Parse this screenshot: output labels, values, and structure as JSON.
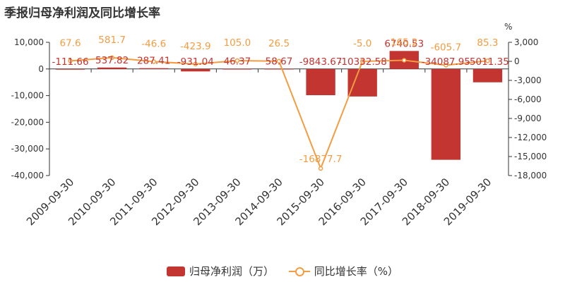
{
  "title": "季报归母净利润及同比增长率",
  "chart_data": {
    "type": "bar",
    "categories": [
      "2009-09-30",
      "2010-09-30",
      "2011-09-30",
      "2012-09-30",
      "2013-09-30",
      "2014-09-30",
      "2015-09-30",
      "2016-09-30",
      "2017-09-30",
      "2018-09-30",
      "2019-09-30"
    ],
    "series": [
      {
        "name": "归母净利润（万）",
        "type": "bar",
        "axis": "left",
        "color": "#c23531",
        "values": [
          -111.66,
          537.82,
          287.41,
          -931.04,
          46.37,
          58.67,
          -9843.67,
          -10332.58,
          6740.53,
          -34087.95,
          -5011.35
        ],
        "labels": [
          "-111.66",
          "537.82",
          "287.41",
          "-931.04",
          "46.37",
          "58.67",
          "-9843.67",
          "-10332.58",
          "6740.53",
          "-34087.95",
          "-5011.35"
        ]
      },
      {
        "name": "同比增长率（%）",
        "type": "line",
        "axis": "right",
        "color": "#f49c41",
        "values": [
          67.6,
          581.7,
          -46.6,
          -423.9,
          105.0,
          26.5,
          -16877.7,
          -5.0,
          165.2,
          -605.7,
          85.3
        ],
        "labels": [
          "67.6",
          "581.7",
          "-46.6",
          "-423.9",
          "105.0",
          "26.5",
          "-16877.7",
          "-5.0",
          "165.2",
          "-605.7",
          "85.3"
        ]
      }
    ],
    "y_left": {
      "min": -40000,
      "max": 10000,
      "ticks": [
        10000,
        0,
        -10000,
        -20000,
        -30000,
        -40000
      ],
      "tick_labels": [
        "10,000",
        "0",
        "-10,000",
        "-20,000",
        "-30,000",
        "-40,000"
      ]
    },
    "y_right": {
      "min": -18000,
      "max": 3000,
      "unit": "%",
      "ticks": [
        3000,
        0,
        -3000,
        -6000,
        -9000,
        -12000,
        -15000,
        -18000
      ],
      "tick_labels": [
        "3,000",
        "0",
        "-3,000",
        "-6,000",
        "-9,000",
        "-12,000",
        "-15,000",
        "-18,000"
      ]
    },
    "grid": false,
    "legend_position": "bottom-center"
  },
  "legend": {
    "bar_label": "归母净利润（万）",
    "line_label": "同比增长率（%）"
  }
}
